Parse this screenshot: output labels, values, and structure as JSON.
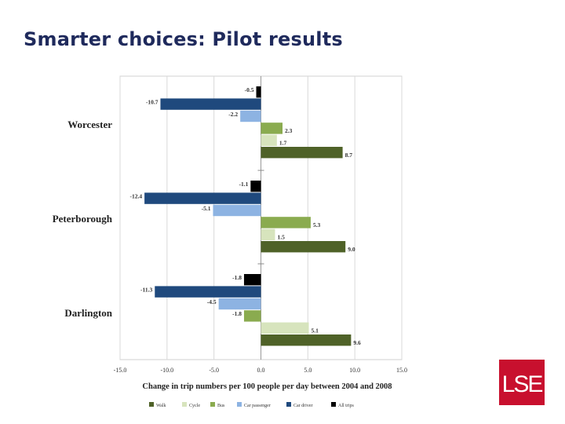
{
  "slide": {
    "title": "Smarter choices: Pilot results"
  },
  "logo": {
    "text": "LSE",
    "color": "#c8102e"
  },
  "chart_data": {
    "type": "bar",
    "orientation": "horizontal",
    "title": "",
    "xlabel": "Change in trip numbers per 100 people per day between 2004 and 2008",
    "ylabel": "",
    "xlim": [
      -15.0,
      15.0
    ],
    "xticks": [
      "-15.0",
      "-10.0",
      "-5.0",
      "0.0",
      "5.0",
      "10.0",
      "15.0"
    ],
    "grid": true,
    "legend_position": "bottom",
    "series": [
      {
        "name": "Walk",
        "color": "#4f6228"
      },
      {
        "name": "Cycle",
        "color": "#d7e4bd"
      },
      {
        "name": "Bus",
        "color": "#8aab4f"
      },
      {
        "name": "Car passenger",
        "color": "#8db3e2"
      },
      {
        "name": "Car driver",
        "color": "#1f497d"
      },
      {
        "name": "All trips",
        "color": "#000000"
      }
    ],
    "groups": [
      {
        "name": "Worcester",
        "bars": [
          {
            "series": "All trips",
            "value": -0.5,
            "label": "-0.5"
          },
          {
            "series": "Car driver",
            "value": -10.7,
            "label": "-10.7"
          },
          {
            "series": "Car passenger",
            "value": -2.2,
            "label": "-2.2"
          },
          {
            "series": "Bus",
            "value": 2.3,
            "label": "2.3"
          },
          {
            "series": "Cycle",
            "value": 1.7,
            "label": "1.7"
          },
          {
            "series": "Walk",
            "value": 8.7,
            "label": "8.7"
          }
        ]
      },
      {
        "name": "Peterborough",
        "bars": [
          {
            "series": "All trips",
            "value": -1.1,
            "label": "-1.1"
          },
          {
            "series": "Car driver",
            "value": -12.4,
            "label": "-12.4"
          },
          {
            "series": "Car passenger",
            "value": -5.1,
            "label": "-5.1"
          },
          {
            "series": "Bus",
            "value": 5.3,
            "label": "5.3"
          },
          {
            "series": "Cycle",
            "value": 1.5,
            "label": "1.5"
          },
          {
            "series": "Walk",
            "value": 9.0,
            "label": "9.0"
          }
        ]
      },
      {
        "name": "Darlington",
        "bars": [
          {
            "series": "All trips",
            "value": -1.8,
            "label": "-1.8"
          },
          {
            "series": "Car driver",
            "value": -11.3,
            "label": "-11.3"
          },
          {
            "series": "Car passenger",
            "value": -4.5,
            "label": "-4.5"
          },
          {
            "series": "Bus",
            "value": -1.8,
            "label": "-1.8"
          },
          {
            "series": "Cycle",
            "value": 5.1,
            "label": "5.1"
          },
          {
            "series": "Walk",
            "value": 9.6,
            "label": "9.6"
          }
        ]
      }
    ]
  }
}
